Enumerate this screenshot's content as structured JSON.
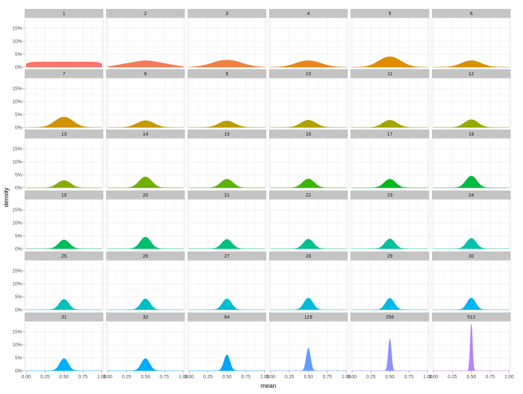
{
  "chart_data": {
    "type": "area",
    "kind": "faceted density plot",
    "xlabel": "mean",
    "ylabel": "density",
    "xlim": [
      0,
      1
    ],
    "ylim": [
      0,
      0.19
    ],
    "x_ticks": [
      "0.00",
      "0.25",
      "0.50",
      "0.75",
      "1.00"
    ],
    "x_tick_values": [
      0,
      0.25,
      0.5,
      0.75,
      1
    ],
    "y_ticks": [
      "0%",
      "5%",
      "10%",
      "15%"
    ],
    "y_tick_values": [
      0,
      0.05,
      0.1,
      0.15
    ],
    "grid": true,
    "legend": "none",
    "panels": [
      {
        "label": "1",
        "n": 1,
        "color": "#F8766D",
        "peak": 0.02
      },
      {
        "label": "2",
        "n": 2,
        "color": "#F37B59",
        "peak": 0.025
      },
      {
        "label": "3",
        "n": 3,
        "color": "#ED8141",
        "peak": 0.027
      },
      {
        "label": "4",
        "n": 4,
        "color": "#E7861B",
        "peak": 0.025
      },
      {
        "label": "5",
        "n": 5,
        "color": "#E08B00",
        "peak": 0.04
      },
      {
        "label": "6",
        "n": 6,
        "color": "#D89000",
        "peak": 0.025
      },
      {
        "label": "7",
        "n": 7,
        "color": "#CF9400",
        "peak": 0.04
      },
      {
        "label": "8",
        "n": 8,
        "color": "#C59900",
        "peak": 0.026
      },
      {
        "label": "9",
        "n": 9,
        "color": "#BB9D00",
        "peak": 0.025
      },
      {
        "label": "10",
        "n": 10,
        "color": "#AFA100",
        "peak": 0.028
      },
      {
        "label": "11",
        "n": 11,
        "color": "#A3A500",
        "peak": 0.028
      },
      {
        "label": "12",
        "n": 12,
        "color": "#95A900",
        "peak": 0.03
      },
      {
        "label": "13",
        "n": 13,
        "color": "#85AD00",
        "peak": 0.028
      },
      {
        "label": "14",
        "n": 14,
        "color": "#72B000",
        "peak": 0.042
      },
      {
        "label": "15",
        "n": 15,
        "color": "#5BB300",
        "peak": 0.033
      },
      {
        "label": "16",
        "n": 16,
        "color": "#39B600",
        "peak": 0.034
      },
      {
        "label": "17",
        "n": 17,
        "color": "#00B81F",
        "peak": 0.033
      },
      {
        "label": "18",
        "n": 18,
        "color": "#00BA42",
        "peak": 0.045
      },
      {
        "label": "19",
        "n": 19,
        "color": "#00BC59",
        "peak": 0.034
      },
      {
        "label": "20",
        "n": 20,
        "color": "#00BE6C",
        "peak": 0.045
      },
      {
        "label": "21",
        "n": 21,
        "color": "#00BF7D",
        "peak": 0.036
      },
      {
        "label": "22",
        "n": 22,
        "color": "#00C08D",
        "peak": 0.037
      },
      {
        "label": "23",
        "n": 23,
        "color": "#00C19C",
        "peak": 0.038
      },
      {
        "label": "24",
        "n": 24,
        "color": "#00C1AA",
        "peak": 0.04
      },
      {
        "label": "25",
        "n": 25,
        "color": "#00C0B8",
        "peak": 0.04
      },
      {
        "label": "26",
        "n": 26,
        "color": "#00BFC4",
        "peak": 0.042
      },
      {
        "label": "27",
        "n": 27,
        "color": "#00BDD0",
        "peak": 0.042
      },
      {
        "label": "28",
        "n": 28,
        "color": "#00BBDB",
        "peak": 0.045
      },
      {
        "label": "29",
        "n": 29,
        "color": "#00B8E5",
        "peak": 0.044
      },
      {
        "label": "30",
        "n": 30,
        "color": "#00B4EF",
        "peak": 0.045
      },
      {
        "label": "31",
        "n": 31,
        "color": "#00B0F6",
        "peak": 0.047
      },
      {
        "label": "32",
        "n": 32,
        "color": "#00ABFD",
        "peak": 0.047
      },
      {
        "label": "64",
        "n": 64,
        "color": "#00A5FF",
        "peak": 0.061
      },
      {
        "label": "128",
        "n": 128,
        "color": "#619CFF",
        "peak": 0.087
      },
      {
        "label": "256",
        "n": 256,
        "color": "#8F91FF",
        "peak": 0.122
      },
      {
        "label": "512",
        "n": 512,
        "color": "#B385FF",
        "peak": 0.18
      }
    ]
  }
}
